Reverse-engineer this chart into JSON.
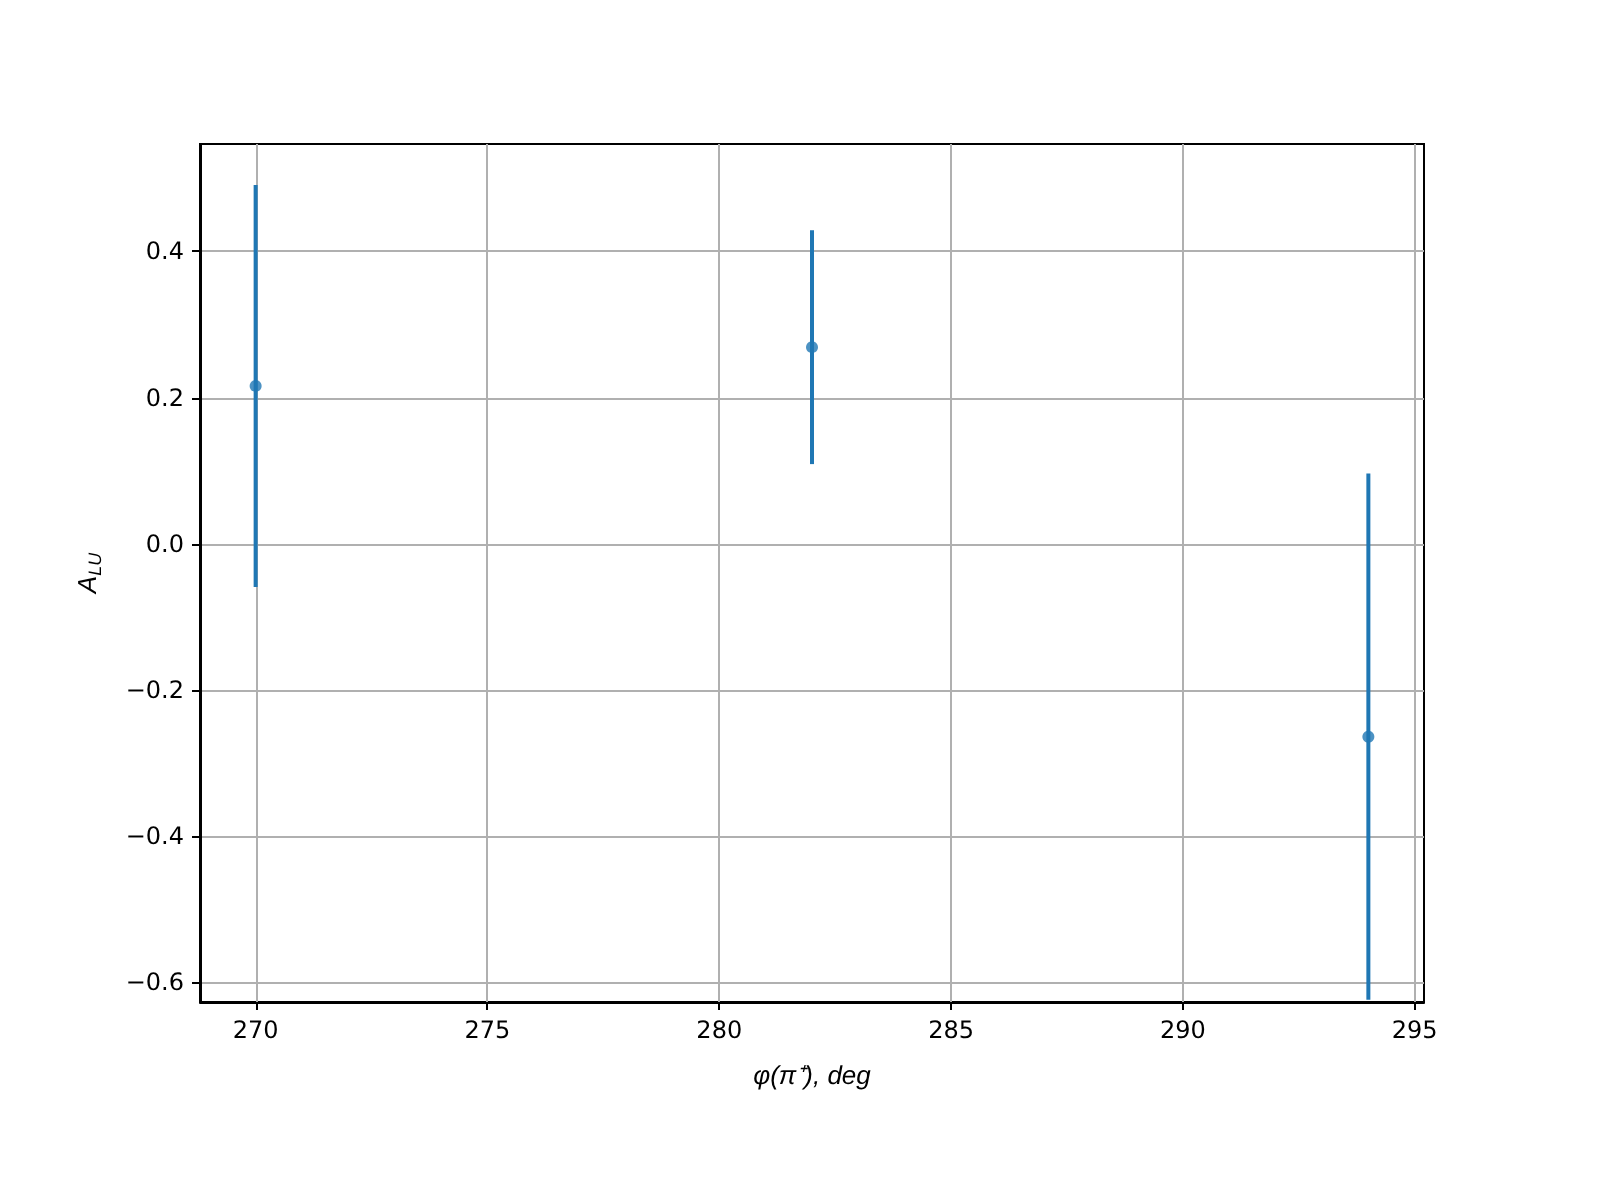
{
  "chart_data": {
    "type": "scatter",
    "xlabel": "φ(π⁺), deg",
    "ylabel": "A$_{LU}$",
    "x": [
      270,
      282,
      294
    ],
    "series": [
      {
        "color": "#1f77b4",
        "values": [
          0.216,
          0.269,
          -0.264
        ],
        "errors": [
          0.275,
          0.16,
          0.36
        ]
      }
    ],
    "xlim": [
      268.8,
      295.2
    ],
    "xticks": [
      270,
      275,
      280,
      285,
      290,
      295
    ],
    "ylim": [
      -0.627,
      0.547
    ],
    "yticks": [
      {
        "value": -0.6,
        "label": "−0.6"
      },
      {
        "value": -0.4,
        "label": "−0.4"
      },
      {
        "value": -0.2,
        "label": "−0.2"
      },
      {
        "value": 0,
        "label": "0.0"
      },
      0.2,
      0.4
    ],
    "grid": true,
    "marker": "circle",
    "legend": false
  }
}
